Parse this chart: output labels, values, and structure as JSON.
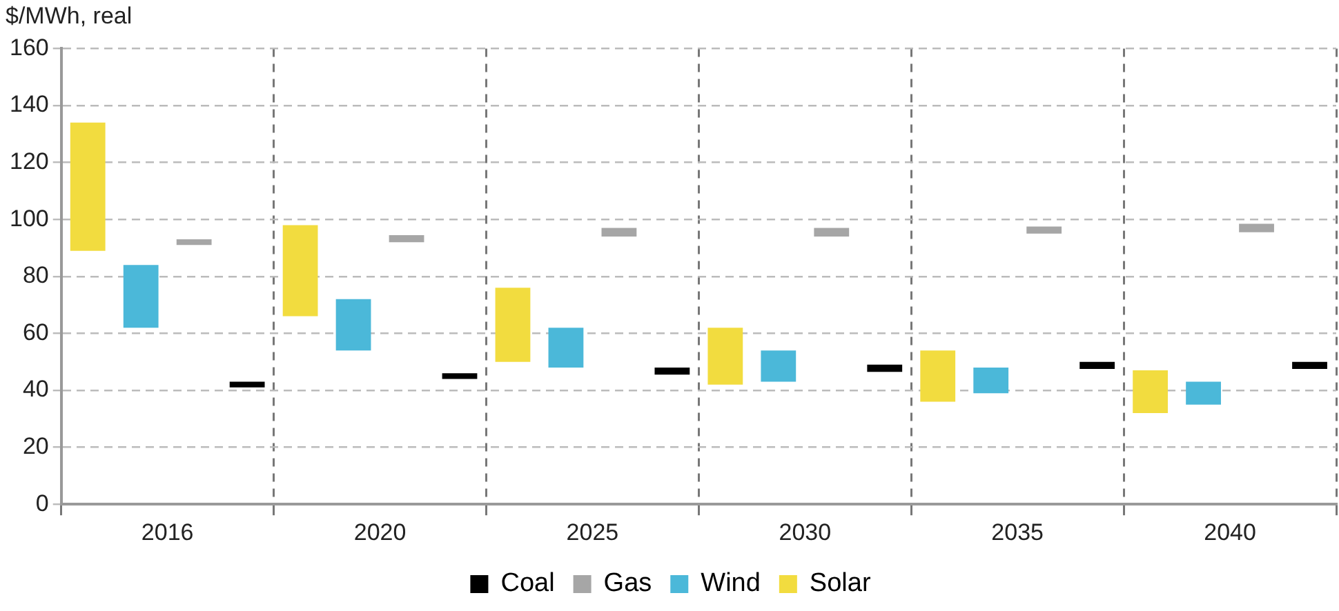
{
  "chart_data": {
    "type": "bar",
    "ylabel": "$/MWh, real",
    "categories": [
      "2016",
      "2020",
      "2025",
      "2030",
      "2035",
      "2040"
    ],
    "series": [
      {
        "name": "Solar",
        "color": "#f2dc3f",
        "base": [
          89,
          66,
          50,
          42,
          36,
          32
        ],
        "values": [
          45,
          32,
          26,
          20,
          18,
          15
        ]
      },
      {
        "name": "Wind",
        "color": "#4bb8d9",
        "base": [
          62,
          54,
          48,
          43,
          39,
          35
        ],
        "values": [
          22,
          18,
          14,
          11,
          9,
          8
        ]
      },
      {
        "name": "Gas",
        "color": "#a6a6a6",
        "base": [
          91,
          92,
          94,
          94,
          95,
          95.5
        ],
        "values": [
          2,
          2.5,
          3,
          3,
          2.5,
          3
        ]
      },
      {
        "name": "Coal",
        "color": "#000000",
        "base": [
          41,
          44,
          45.5,
          46.5,
          47.5,
          47.5
        ],
        "values": [
          2,
          2,
          2.5,
          2.5,
          2.5,
          2.5
        ]
      }
    ],
    "ylim": [
      0,
      160
    ],
    "yticks": [
      0,
      20,
      40,
      60,
      80,
      100,
      120,
      140,
      160
    ],
    "grid": true,
    "legend": "bottom"
  }
}
